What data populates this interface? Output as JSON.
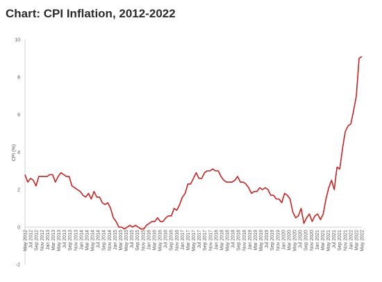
{
  "title": "Chart: CPI Inflation, 2012-2022",
  "chart_data": {
    "type": "line",
    "title": "Chart: CPI Inflation, 2012-2022",
    "xlabel": "",
    "ylabel": "CPI (%)",
    "ylim": [
      -2,
      10
    ],
    "yticks": [
      "10",
      "8",
      "6",
      "4",
      "2",
      "0",
      "-2"
    ],
    "grid": false,
    "legend": "none",
    "line_color": "#cc1f1f",
    "x_tick_labels": [
      "May 2012",
      "Jul 2012",
      "Sep 2012",
      "Nov 2012",
      "Jan 2013",
      "Mar 2013",
      "May 2013",
      "Jul 2013",
      "Sep 2013",
      "Nov 2013",
      "Jan 2014",
      "Mar 2014",
      "May 2014",
      "Jul 2014",
      "Sep 2014",
      "Nov 2014",
      "Jan 2015",
      "Mar 2015",
      "May 2015",
      "Jul 2015",
      "Sep 2015",
      "Nov 2015",
      "Jan 2016",
      "Mar 2016",
      "May 2016",
      "Jul 2016",
      "Sep 2016",
      "Nov 2016",
      "Jan 2017",
      "Mar 2017",
      "May 2017",
      "Jul 2017",
      "Sep 2017",
      "Nov 2017",
      "Jan 2018",
      "Mar 2018",
      "May 2018",
      "Jul 2018",
      "Sep 2018",
      "Nov 2018",
      "Jan 2019",
      "Mar 2019",
      "May 2019",
      "Jul 2019",
      "Sep 2019",
      "Nov 2019",
      "Jan 2020",
      "Mar 2020",
      "May 2020",
      "Jul 2020",
      "Sep 2020",
      "Nov 2020",
      "Jan 2021",
      "Mar 2021",
      "May 2021",
      "Jul 2021",
      "Sep 2021",
      "Nov 2021",
      "Jan 2022",
      "Mar 2022",
      "May 2022"
    ],
    "series": [
      {
        "values": [
          2.8,
          2.4,
          2.6,
          2.5,
          2.2,
          2.7,
          2.7,
          2.7,
          2.7,
          2.8,
          2.8,
          2.4,
          2.7,
          2.9,
          2.8,
          2.7,
          2.7,
          2.2,
          2.1,
          2.0,
          1.9,
          1.7,
          1.6,
          1.8,
          1.5,
          1.9,
          1.6,
          1.6,
          1.3,
          1.2,
          1.3,
          1.0,
          0.5,
          0.3,
          0.0,
          0.0,
          -0.1,
          0.0,
          0.1,
          0.0,
          0.1,
          0.0,
          -0.1,
          -0.1,
          0.1,
          0.2,
          0.3,
          0.3,
          0.5,
          0.3,
          0.3,
          0.5,
          0.6,
          0.6,
          1.0,
          0.9,
          1.2,
          1.6,
          1.8,
          2.3,
          2.3,
          2.6,
          2.9,
          2.6,
          2.6,
          2.9,
          3.0,
          3.0,
          3.1,
          3.0,
          3.0,
          2.7,
          2.5,
          2.4,
          2.4,
          2.4,
          2.5,
          2.7,
          2.4,
          2.4,
          2.3,
          2.1,
          1.8,
          1.9,
          1.9,
          2.1,
          2.0,
          2.1,
          2.0,
          1.7,
          1.7,
          1.5,
          1.5,
          1.3,
          1.8,
          1.7,
          1.5,
          0.8,
          0.5,
          0.6,
          1.0,
          0.2,
          0.5,
          0.7,
          0.3,
          0.6,
          0.7,
          0.4,
          0.7,
          1.5,
          2.1,
          2.5,
          2.0,
          3.2,
          3.1,
          4.2,
          5.1,
          5.4,
          5.5,
          6.2,
          7.0,
          9.0,
          9.1
        ]
      }
    ]
  }
}
